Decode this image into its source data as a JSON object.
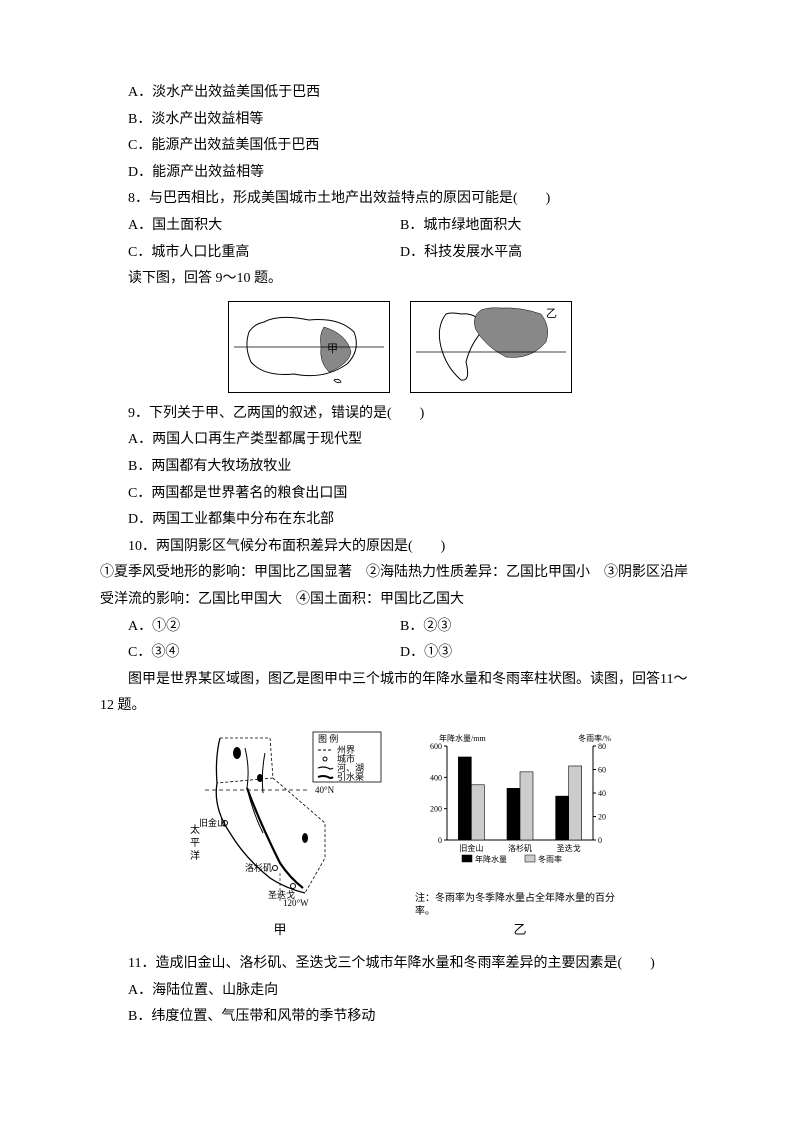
{
  "q_opts_1": {
    "a": "A．淡水产出效益美国低于巴西",
    "b": "B．淡水产出效益相等",
    "c": "C．能源产出效益美国低于巴西",
    "d": "D．能源产出效益相等"
  },
  "q8": {
    "stem": "8．与巴西相比，形成美国城市土地产出效益特点的原因可能是(　　)",
    "a": "A．国土面积大",
    "b": "B．城市绿地面积大",
    "c": "C．城市人口比重高",
    "d": "D．科技发展水平高"
  },
  "lead_9_10": "读下图，回答 9～10 题。",
  "map1": {
    "label": "甲"
  },
  "map2": {
    "label": "乙"
  },
  "q9": {
    "stem": "9．下列关于甲、乙两国的叙述，错误的是(　　)",
    "a": "A．两国人口再生产类型都属于现代型",
    "b": "B．两国都有大牧场放牧业",
    "c": "C．两国都是世界著名的粮食出口国",
    "d": "D．两国工业都集中分布在东北部"
  },
  "q10": {
    "stem": "10．两国阴影区气候分布面积差异大的原因是(　　)",
    "detail": "①夏季风受地形的影响：甲国比乙国显著　②海陆热力性质差异：乙国比甲国小　③阴影区沿岸受洋流的影响：乙国比甲国大　④国土面积：甲国比乙国大",
    "a": "A．①②",
    "b": "B．②③",
    "c": "C．③④",
    "d": "D．①③"
  },
  "lead_11_12": "图甲是世界某区域图，图乙是图甲中三个城市的年降水量和冬雨率柱状图。读图，回答11～12 题。",
  "fig2": {
    "map": {
      "caption": "甲",
      "legend_title": "图 例",
      "legend_items": [
        "州界",
        "城市",
        "河、湖",
        "引水渠"
      ],
      "labels": {
        "lat": "40°N",
        "ocean": "太\n平\n洋",
        "city1": "旧金山",
        "city2": "洛杉矶",
        "city3": "圣迭戈",
        "lon": "120°W"
      }
    },
    "chart": {
      "caption": "乙",
      "y_left_label": "年降水量/mm",
      "y_right_label": "冬雨率/%",
      "y_left_ticks": [
        0,
        200,
        400,
        600
      ],
      "y_right_ticks": [
        0,
        20,
        40,
        60,
        80
      ],
      "categories": [
        "旧金山",
        "洛杉矶",
        "圣迭戈"
      ],
      "series": [
        {
          "name": "年降水量",
          "values": [
            530,
            330,
            280
          ],
          "color": "#000000"
        },
        {
          "name": "冬雨率",
          "values": [
            47,
            58,
            63
          ],
          "color": "#cccccc"
        }
      ],
      "legend": [
        "年降水量",
        "冬雨率"
      ],
      "note": "注：冬雨率为冬季降水量占全年降水量的百分率。"
    }
  },
  "q11": {
    "stem": "11．造成旧金山、洛杉矶、圣迭戈三个城市年降水量和冬雨率差异的主要因素是(　　)",
    "a": "A．海陆位置、山脉走向",
    "b": "B．纬度位置、气压带和风带的季节移动"
  }
}
